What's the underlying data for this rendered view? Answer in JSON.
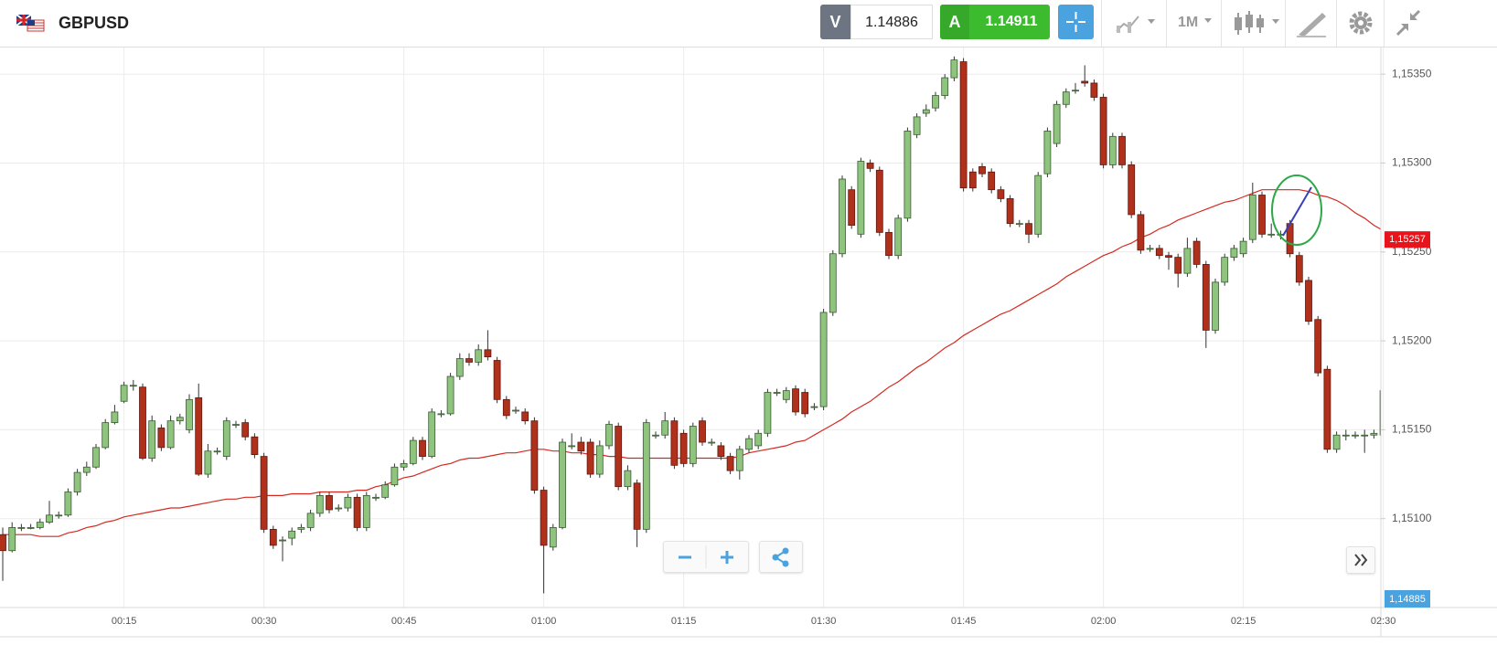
{
  "header": {
    "symbol": "GBPUSD",
    "sell_label": "V",
    "sell_price": "1.14886",
    "buy_label": "A",
    "buy_price": "1.14911",
    "timeframe": "1M"
  },
  "chart_data": {
    "type": "candlestick",
    "categories": [
      null,
      null,
      null,
      null,
      null,
      null,
      null,
      null,
      null,
      null,
      null,
      null,
      null,
      "00:15",
      null,
      null,
      null,
      null,
      null,
      null,
      null,
      null,
      null,
      null,
      null,
      null,
      null,
      null,
      "00:30",
      null,
      null,
      null,
      null,
      null,
      null,
      null,
      null,
      null,
      null,
      null,
      null,
      null,
      null,
      "00:45",
      null,
      null,
      null,
      null,
      null,
      null,
      null,
      null,
      null,
      null,
      null,
      null,
      null,
      null,
      "01:00",
      null,
      null,
      null,
      null,
      null,
      null,
      null,
      null,
      null,
      null,
      null,
      null,
      null,
      null,
      "01:15",
      null,
      null,
      null,
      null,
      null,
      null,
      null,
      null,
      null,
      null,
      null,
      null,
      null,
      null,
      "01:30",
      null,
      null,
      null,
      null,
      null,
      null,
      null,
      null,
      null,
      null,
      null,
      null,
      null,
      null,
      "01:45",
      null,
      null,
      null,
      null,
      null,
      null,
      null,
      null,
      null,
      null,
      null,
      null,
      null,
      null,
      "02:00",
      null,
      null,
      null,
      null,
      null,
      null,
      null,
      null,
      null,
      null,
      null,
      null,
      null,
      null,
      "02:15",
      null,
      null,
      null,
      null,
      null,
      null,
      null,
      null,
      null,
      null,
      null,
      null,
      null,
      null,
      "02:30"
    ],
    "open": [
      1.15091,
      1.15082,
      1.15095,
      1.15095,
      1.15095,
      1.15098,
      1.15102,
      1.15102,
      1.15115,
      1.15126,
      1.15129,
      1.1514,
      1.15154,
      1.15166,
      1.15175,
      1.15174,
      1.15134,
      1.15151,
      1.1514,
      1.15155,
      1.1515,
      1.15168,
      1.15125,
      1.15138,
      1.15135,
      1.15153,
      1.15154,
      1.15146,
      1.15135,
      1.15094,
      1.15088,
      1.15089,
      1.15094,
      1.15095,
      1.15103,
      1.15113,
      1.15106,
      1.15106,
      1.15112,
      1.15095,
      1.15112,
      1.15112,
      1.15119,
      1.15129,
      1.15131,
      1.15144,
      1.15135,
      1.15159,
      1.15159,
      1.1518,
      1.1519,
      1.15188,
      1.15195,
      1.15189,
      1.15167,
      1.15161,
      1.1516,
      1.15155,
      1.15116,
      1.15084,
      1.15095,
      1.15141,
      1.15143,
      1.15143,
      1.15125,
      1.15141,
      1.15152,
      1.15118,
      1.1512,
      1.15094,
      1.15147,
      1.15147,
      1.15155,
      1.15148,
      1.15131,
      1.15155,
      1.15143,
      1.15141,
      1.15135,
      1.15127,
      1.15139,
      1.15141,
      1.15148,
      1.15171,
      1.15167,
      1.15173,
      1.15171,
      1.15163,
      1.15163,
      1.15216,
      1.15249,
      1.15285,
      1.1526,
      1.153,
      1.15296,
      1.15261,
      1.15248,
      1.15269,
      1.15316,
      1.15328,
      1.15331,
      1.15338,
      1.15348,
      1.15357,
      1.15295,
      1.15298,
      1.15295,
      1.15285,
      1.1528,
      1.15266,
      1.15266,
      1.1526,
      1.15294,
      1.15311,
      1.15333,
      1.15341,
      1.15346,
      1.15345,
      1.15337,
      1.15299,
      1.15315,
      1.15299,
      1.15271,
      1.15252,
      1.15252,
      1.15248,
      1.15247,
      1.15238,
      1.15256,
      1.15243,
      1.15206,
      1.15233,
      1.15247,
      1.15249,
      1.15257,
      1.15282,
      1.1526,
      1.1526,
      1.15266,
      1.15248,
      1.15234,
      1.15212,
      1.15184,
      1.15139,
      1.15147,
      1.15147,
      1.15147,
      1.15147,
      1.15147
    ],
    "high": [
      1.15095,
      1.15098,
      1.15097,
      1.15097,
      1.151,
      1.1511,
      1.15104,
      1.15117,
      1.15128,
      1.15132,
      1.15142,
      1.15156,
      1.15164,
      1.15177,
      1.15178,
      1.15176,
      1.15158,
      1.15153,
      1.15158,
      1.15159,
      1.1517,
      1.15176,
      1.15142,
      1.1514,
      1.15157,
      1.15155,
      1.15156,
      1.15148,
      1.15137,
      1.15096,
      1.1509,
      1.15095,
      1.15097,
      1.15105,
      1.15115,
      1.15115,
      1.15108,
      1.15114,
      1.15114,
      1.15115,
      1.15114,
      1.15121,
      1.15131,
      1.15133,
      1.15146,
      1.15146,
      1.15162,
      1.15161,
      1.15182,
      1.15193,
      1.15193,
      1.15198,
      1.15206,
      1.15191,
      1.15169,
      1.15163,
      1.15162,
      1.15157,
      1.15118,
      1.15097,
      1.15145,
      1.15148,
      1.15146,
      1.15145,
      1.15144,
      1.15155,
      1.15154,
      1.1513,
      1.15122,
      1.15156,
      1.15149,
      1.1516,
      1.15157,
      1.1515,
      1.15154,
      1.15157,
      1.15145,
      1.15143,
      1.15137,
      1.15141,
      1.15147,
      1.1515,
      1.15173,
      1.15173,
      1.15174,
      1.15175,
      1.15173,
      1.15165,
      1.15218,
      1.15251,
      1.15293,
      1.15287,
      1.15303,
      1.15302,
      1.15298,
      1.15263,
      1.15271,
      1.1532,
      1.15328,
      1.15333,
      1.1534,
      1.1535,
      1.1536,
      1.15359,
      1.15297,
      1.153,
      1.15297,
      1.15287,
      1.15282,
      1.15268,
      1.15268,
      1.15295,
      1.1532,
      1.15335,
      1.15342,
      1.15345,
      1.15355,
      1.15347,
      1.15339,
      1.15317,
      1.15317,
      1.15301,
      1.15273,
      1.15254,
      1.15254,
      1.1525,
      1.15249,
      1.15258,
      1.15258,
      1.15245,
      1.15235,
      1.15249,
      1.15254,
      1.15258,
      1.15289,
      1.15284,
      1.15266,
      1.15262,
      1.15268,
      1.1525,
      1.15236,
      1.15214,
      1.15186,
      1.15149,
      1.1515,
      1.15149,
      1.1515,
      1.1515,
      1.15174
    ],
    "low": [
      1.15065,
      1.15081,
      1.15093,
      1.15094,
      1.15094,
      1.15097,
      1.151,
      1.15101,
      1.15113,
      1.15124,
      1.15128,
      1.15139,
      1.15153,
      1.15165,
      1.15172,
      1.15133,
      1.15132,
      1.15138,
      1.15139,
      1.15153,
      1.15148,
      1.15124,
      1.15123,
      1.15136,
      1.15133,
      1.15151,
      1.15144,
      1.15134,
      1.15092,
      1.15083,
      1.15076,
      1.15085,
      1.15092,
      1.15093,
      1.15101,
      1.15103,
      1.15104,
      1.15104,
      1.15093,
      1.15093,
      1.1511,
      1.15111,
      1.15118,
      1.15127,
      1.1513,
      1.15133,
      1.15134,
      1.15157,
      1.15158,
      1.15178,
      1.15186,
      1.15186,
      1.15189,
      1.15165,
      1.15156,
      1.15159,
      1.15153,
      1.15114,
      1.15058,
      1.15082,
      1.15094,
      1.15139,
      1.15136,
      1.15123,
      1.15123,
      1.15139,
      1.15116,
      1.15116,
      1.15084,
      1.15092,
      1.15145,
      1.15145,
      1.15128,
      1.15129,
      1.15129,
      1.15141,
      1.15141,
      1.15133,
      1.15125,
      1.15122,
      1.15137,
      1.15139,
      1.15146,
      1.15169,
      1.15165,
      1.15158,
      1.15157,
      1.15161,
      1.15161,
      1.15214,
      1.15247,
      1.15263,
      1.15258,
      1.15295,
      1.15259,
      1.15246,
      1.15246,
      1.15267,
      1.15314,
      1.15326,
      1.15329,
      1.15336,
      1.15346,
      1.15284,
      1.15284,
      1.15292,
      1.15283,
      1.15278,
      1.15264,
      1.15264,
      1.15255,
      1.15258,
      1.15292,
      1.15309,
      1.15331,
      1.15339,
      1.15343,
      1.15335,
      1.15297,
      1.15297,
      1.15297,
      1.15269,
      1.15249,
      1.1525,
      1.15246,
      1.1524,
      1.1523,
      1.15236,
      1.15241,
      1.15196,
      1.15204,
      1.15231,
      1.15245,
      1.15247,
      1.15255,
      1.15258,
      1.15258,
      1.15257,
      1.15247,
      1.15231,
      1.15209,
      1.1518,
      1.15137,
      1.15137,
      1.15144,
      1.15145,
      1.15137,
      1.15145,
      1.15145
    ],
    "close": [
      1.15082,
      1.15095,
      1.15095,
      1.15095,
      1.15098,
      1.15102,
      1.15102,
      1.15115,
      1.15126,
      1.15129,
      1.1514,
      1.15154,
      1.1516,
      1.15175,
      1.15175,
      1.15134,
      1.15155,
      1.1514,
      1.15155,
      1.15157,
      1.15167,
      1.15125,
      1.15138,
      1.15138,
      1.15155,
      1.15153,
      1.15146,
      1.15136,
      1.15094,
      1.15085,
      1.15088,
      1.15093,
      1.15095,
      1.15103,
      1.15113,
      1.15105,
      1.15106,
      1.15112,
      1.15095,
      1.15113,
      1.15112,
      1.15119,
      1.15129,
      1.15131,
      1.15144,
      1.15135,
      1.1516,
      1.15159,
      1.1518,
      1.1519,
      1.15188,
      1.15195,
      1.15191,
      1.15167,
      1.15158,
      1.15161,
      1.15155,
      1.15116,
      1.15085,
      1.15095,
      1.15143,
      1.15141,
      1.15138,
      1.15125,
      1.15141,
      1.15153,
      1.15118,
      1.15127,
      1.15094,
      1.15154,
      1.15147,
      1.15155,
      1.1513,
      1.15131,
      1.15152,
      1.15143,
      1.15143,
      1.15135,
      1.15127,
      1.15139,
      1.15145,
      1.15148,
      1.15171,
      1.15171,
      1.15172,
      1.1516,
      1.15159,
      1.15163,
      1.15216,
      1.15249,
      1.15291,
      1.15265,
      1.15301,
      1.15297,
      1.15261,
      1.15248,
      1.15269,
      1.15318,
      1.15326,
      1.1533,
      1.15338,
      1.15348,
      1.15358,
      1.15286,
      1.15286,
      1.15294,
      1.15285,
      1.1528,
      1.15266,
      1.15266,
      1.1526,
      1.15293,
      1.15318,
      1.15333,
      1.1534,
      1.15341,
      1.15345,
      1.15337,
      1.15299,
      1.15315,
      1.15299,
      1.15271,
      1.15251,
      1.15252,
      1.15248,
      1.15247,
      1.15238,
      1.15252,
      1.15243,
      1.15206,
      1.15233,
      1.15247,
      1.15252,
      1.15256,
      1.15282,
      1.1526,
      1.1526,
      1.1526,
      1.15249,
      1.15233,
      1.15211,
      1.15182,
      1.15139,
      1.15147,
      1.15147,
      1.15147,
      1.15147,
      1.15148,
      1.15172
    ],
    "moving_average": {
      "color": "#d42a20",
      "values": [
        1.15091,
        1.15091,
        1.15091,
        1.15091,
        1.1509,
        1.1509,
        1.1509,
        1.15092,
        1.15093,
        1.15095,
        1.15096,
        1.15098,
        1.15099,
        1.15101,
        1.15102,
        1.15103,
        1.15104,
        1.15105,
        1.15106,
        1.15106,
        1.15107,
        1.15108,
        1.15109,
        1.1511,
        1.15111,
        1.15111,
        1.15112,
        1.15112,
        1.15113,
        1.15113,
        1.15113,
        1.15114,
        1.15114,
        1.15114,
        1.15115,
        1.15115,
        1.15115,
        1.15115,
        1.15116,
        1.15116,
        1.15118,
        1.15119,
        1.15121,
        1.15123,
        1.15124,
        1.15126,
        1.15128,
        1.1513,
        1.15131,
        1.15133,
        1.15134,
        1.15134,
        1.15135,
        1.15136,
        1.15137,
        1.15137,
        1.15138,
        1.15139,
        1.15139,
        1.15138,
        1.15138,
        1.15137,
        1.15137,
        1.15136,
        1.15136,
        1.15135,
        1.15135,
        1.15134,
        1.15134,
        1.15134,
        1.15134,
        1.15134,
        1.15134,
        1.15134,
        1.15134,
        1.15134,
        1.15134,
        1.15134,
        1.15134,
        1.15135,
        1.15137,
        1.15138,
        1.15139,
        1.1514,
        1.15141,
        1.15143,
        1.15144,
        1.15147,
        1.1515,
        1.15153,
        1.15156,
        1.1516,
        1.15163,
        1.15166,
        1.1517,
        1.15174,
        1.15177,
        1.15181,
        1.15185,
        1.15188,
        1.15192,
        1.15196,
        1.15199,
        1.15203,
        1.15206,
        1.15209,
        1.15212,
        1.15215,
        1.15217,
        1.1522,
        1.15223,
        1.15226,
        1.15229,
        1.15232,
        1.15236,
        1.15239,
        1.15242,
        1.15245,
        1.15248,
        1.1525,
        1.15253,
        1.15255,
        1.15258,
        1.1526,
        1.15263,
        1.15265,
        1.15268,
        1.1527,
        1.15272,
        1.15274,
        1.15276,
        1.15278,
        1.15279,
        1.15281,
        1.15283,
        1.15285,
        1.15285,
        1.15285,
        1.15285,
        1.15285,
        1.15284,
        1.15282,
        1.15281,
        1.15279,
        1.15276,
        1.15272,
        1.15269,
        1.15265,
        1.15262
      ]
    },
    "up_color": "#8fc47f",
    "down_color": "#b0301c",
    "ylim": [
      1.1505,
      1.15365
    ],
    "yticks": [
      {
        "value": 1.151,
        "label": "1,15100"
      },
      {
        "value": 1.1515,
        "label": "1,15150"
      },
      {
        "value": 1.152,
        "label": "1,15200"
      },
      {
        "value": 1.1525,
        "label": "1,15250"
      },
      {
        "value": 1.153,
        "label": "1,15300"
      },
      {
        "value": 1.1535,
        "label": "1,15350"
      }
    ],
    "grid": true,
    "current_price": {
      "value": 1.15257,
      "label": "1,15257"
    },
    "bottom_price_label": "1,14885"
  }
}
